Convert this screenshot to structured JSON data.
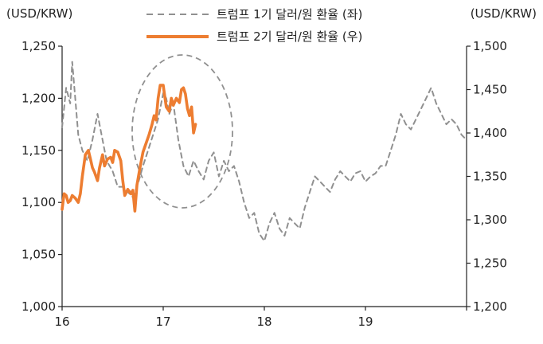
{
  "chart_data": {
    "type": "line",
    "left_unit": "(USD/KRW)",
    "right_unit": "(USD/KRW)",
    "legend": [
      {
        "label": "트럼프 1기 달러/원 환율 (좌)",
        "color": "#909090",
        "style": "dashed"
      },
      {
        "label": "트럼프 2기 달러/원 환율 (우)",
        "color": "#ED7D31",
        "style": "solid"
      }
    ],
    "x_ticks": [
      "16",
      "17",
      "18",
      "19"
    ],
    "y_left": {
      "min": 1000,
      "max": 1250,
      "ticks": [
        "1,000",
        "1,050",
        "1,100",
        "1,150",
        "1,200",
        "1,250"
      ]
    },
    "y_right": {
      "min": 1200,
      "max": 1500,
      "ticks": [
        "1,200",
        "1,250",
        "1,300",
        "1,350",
        "1,400",
        "1,450",
        "1,500"
      ]
    },
    "annotation": "dashed-ellipse",
    "series": [
      {
        "axis": "left",
        "x": [
          16.0,
          16.04,
          16.08,
          16.1,
          16.13,
          16.16,
          16.2,
          16.25,
          16.3,
          16.35,
          16.37,
          16.4,
          16.44,
          16.5,
          16.55,
          16.6,
          16.65,
          16.7,
          16.75,
          16.8,
          16.85,
          16.9,
          16.95,
          17.0,
          17.03,
          17.06,
          17.1,
          17.15,
          17.2,
          17.25,
          17.3,
          17.35,
          17.4,
          17.45,
          17.5,
          17.55,
          17.6,
          17.65,
          17.7,
          17.75,
          17.8,
          17.85,
          17.9,
          17.95,
          18.0,
          18.05,
          18.1,
          18.15,
          18.2,
          18.25,
          18.3,
          18.35,
          18.4,
          18.45,
          18.5,
          18.55,
          18.6,
          18.65,
          18.7,
          18.75,
          18.8,
          18.85,
          18.9,
          18.95,
          19.0,
          19.05,
          19.1,
          19.15,
          19.2,
          19.25,
          19.3,
          19.35,
          19.4,
          19.45,
          19.5,
          19.55,
          19.6,
          19.65,
          19.7,
          19.75,
          19.8,
          19.85,
          19.9,
          19.95,
          20.0
        ],
        "y": [
          1172,
          1210,
          1195,
          1235,
          1200,
          1165,
          1150,
          1140,
          1160,
          1185,
          1175,
          1160,
          1140,
          1130,
          1115,
          1115,
          1110,
          1105,
          1118,
          1135,
          1150,
          1165,
          1180,
          1205,
          1200,
          1185,
          1195,
          1160,
          1135,
          1125,
          1140,
          1130,
          1122,
          1140,
          1148,
          1125,
          1140,
          1130,
          1135,
          1120,
          1100,
          1085,
          1090,
          1070,
          1063,
          1080,
          1090,
          1075,
          1068,
          1085,
          1080,
          1075,
          1095,
          1110,
          1125,
          1120,
          1115,
          1110,
          1122,
          1130,
          1125,
          1120,
          1128,
          1130,
          1120,
          1125,
          1128,
          1135,
          1135,
          1150,
          1165,
          1185,
          1175,
          1170,
          1180,
          1190,
          1200,
          1210,
          1195,
          1185,
          1175,
          1180,
          1175,
          1165,
          1160
        ]
      },
      {
        "axis": "right",
        "x": [
          16.0,
          16.02,
          16.04,
          16.06,
          16.08,
          16.1,
          16.13,
          16.16,
          16.18,
          16.2,
          16.23,
          16.26,
          16.28,
          16.3,
          16.32,
          16.35,
          16.37,
          16.4,
          16.42,
          16.45,
          16.48,
          16.5,
          16.52,
          16.55,
          16.58,
          16.6,
          16.62,
          16.65,
          16.68,
          16.7,
          16.72,
          16.74,
          16.77,
          16.8,
          16.83,
          16.86,
          16.89,
          16.91,
          16.93,
          16.95,
          16.97,
          17.0,
          17.03,
          17.06,
          17.08,
          17.1,
          17.13,
          17.16,
          17.18,
          17.2,
          17.22,
          17.24,
          17.26,
          17.28,
          17.3,
          17.32
        ],
        "y": [
          1312,
          1330,
          1328,
          1320,
          1322,
          1328,
          1325,
          1320,
          1330,
          1350,
          1375,
          1380,
          1370,
          1360,
          1355,
          1345,
          1360,
          1375,
          1362,
          1370,
          1372,
          1366,
          1380,
          1378,
          1368,
          1345,
          1328,
          1335,
          1330,
          1334,
          1310,
          1340,
          1360,
          1378,
          1388,
          1398,
          1410,
          1420,
          1415,
          1440,
          1455,
          1455,
          1430,
          1425,
          1440,
          1432,
          1440,
          1435,
          1450,
          1452,
          1445,
          1428,
          1420,
          1430,
          1400,
          1410
        ]
      }
    ]
  }
}
